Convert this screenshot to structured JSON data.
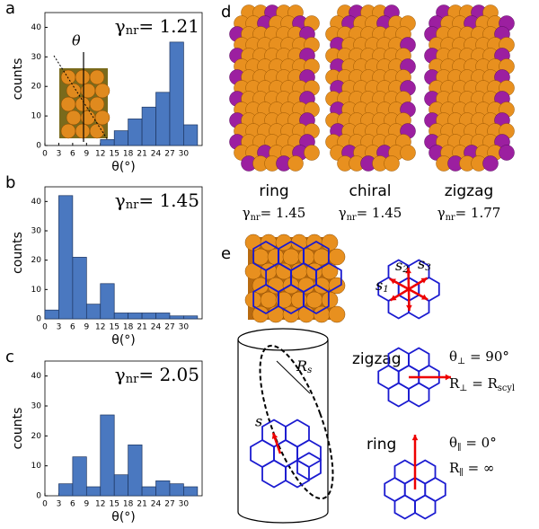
{
  "chart_data": [
    {
      "type": "histogram",
      "panel": "a",
      "annotation": {
        "symbol": "γ",
        "subscript": "nr",
        "text": "= 1.21"
      },
      "inset_label": "θ",
      "xlabel": "θ(°)",
      "ylabel": "counts",
      "bins": [
        0,
        3,
        6,
        9,
        12,
        15,
        18,
        21,
        24,
        27,
        30,
        33
      ],
      "counts": [
        0,
        0,
        0,
        0,
        2,
        5,
        9,
        13,
        18,
        35,
        7
      ],
      "color": "#4a78c0",
      "xlim": [
        0,
        34
      ],
      "ylim": [
        0,
        45
      ],
      "xticks": [
        0,
        3,
        6,
        9,
        12,
        15,
        18,
        21,
        24,
        27,
        30
      ],
      "yticks": [
        0,
        10,
        20,
        30,
        40
      ]
    },
    {
      "type": "histogram",
      "panel": "b",
      "annotation": {
        "symbol": "γ",
        "subscript": "nr",
        "text": "= 1.45"
      },
      "xlabel": "θ(°)",
      "ylabel": "counts",
      "bins": [
        0,
        3,
        6,
        9,
        12,
        15,
        18,
        21,
        24,
        27,
        30,
        33
      ],
      "counts": [
        3,
        42,
        21,
        5,
        12,
        2,
        2,
        2,
        2,
        1,
        1
      ],
      "color": "#4a78c0",
      "xlim": [
        0,
        34
      ],
      "ylim": [
        0,
        45
      ],
      "xticks": [
        0,
        3,
        6,
        9,
        12,
        15,
        18,
        21,
        24,
        27,
        30
      ],
      "yticks": [
        0,
        10,
        20,
        30,
        40
      ]
    },
    {
      "type": "histogram",
      "panel": "c",
      "annotation": {
        "symbol": "γ",
        "subscript": "nr",
        "text": "= 2.05"
      },
      "xlabel": "θ(°)",
      "ylabel": "counts",
      "bins": [
        0,
        3,
        6,
        9,
        12,
        15,
        18,
        21,
        24,
        27,
        30,
        33
      ],
      "counts": [
        0,
        4,
        13,
        3,
        27,
        7,
        17,
        3,
        5,
        4,
        3
      ],
      "color": "#4a78c0",
      "xlim": [
        0,
        34
      ],
      "ylim": [
        0,
        45
      ],
      "xticks": [
        0,
        3,
        6,
        9,
        12,
        15,
        18,
        21,
        24,
        27,
        30
      ],
      "yticks": [
        0,
        10,
        20,
        30,
        40
      ]
    }
  ],
  "figure": {
    "d": {
      "label": "d",
      "structures": [
        {
          "name": "ring",
          "symbol": "γ",
          "subscript": "nr",
          "text": "= 1.45"
        },
        {
          "name": "chiral",
          "symbol": "γ",
          "subscript": "nr",
          "text": "= 1.45"
        },
        {
          "name": "zigzag",
          "symbol": "γ",
          "subscript": "nr",
          "text": "= 1.77"
        }
      ]
    },
    "e": {
      "label": "e",
      "s1": [
        "s",
        "1"
      ],
      "s2": [
        "s",
        "2"
      ],
      "s3": [
        "s",
        "3"
      ],
      "Rs": [
        "R",
        "s"
      ],
      "s": "s",
      "zigzag": {
        "name": "zigzag",
        "theta": [
          "θ",
          "⊥",
          " = 90°"
        ],
        "R": [
          "R",
          "⊥",
          " = R",
          "scyl"
        ]
      },
      "ring": {
        "name": "ring",
        "theta": [
          "θ",
          "∥",
          " = 0°"
        ],
        "R": [
          "R",
          "∥",
          " = ∞"
        ]
      }
    }
  }
}
